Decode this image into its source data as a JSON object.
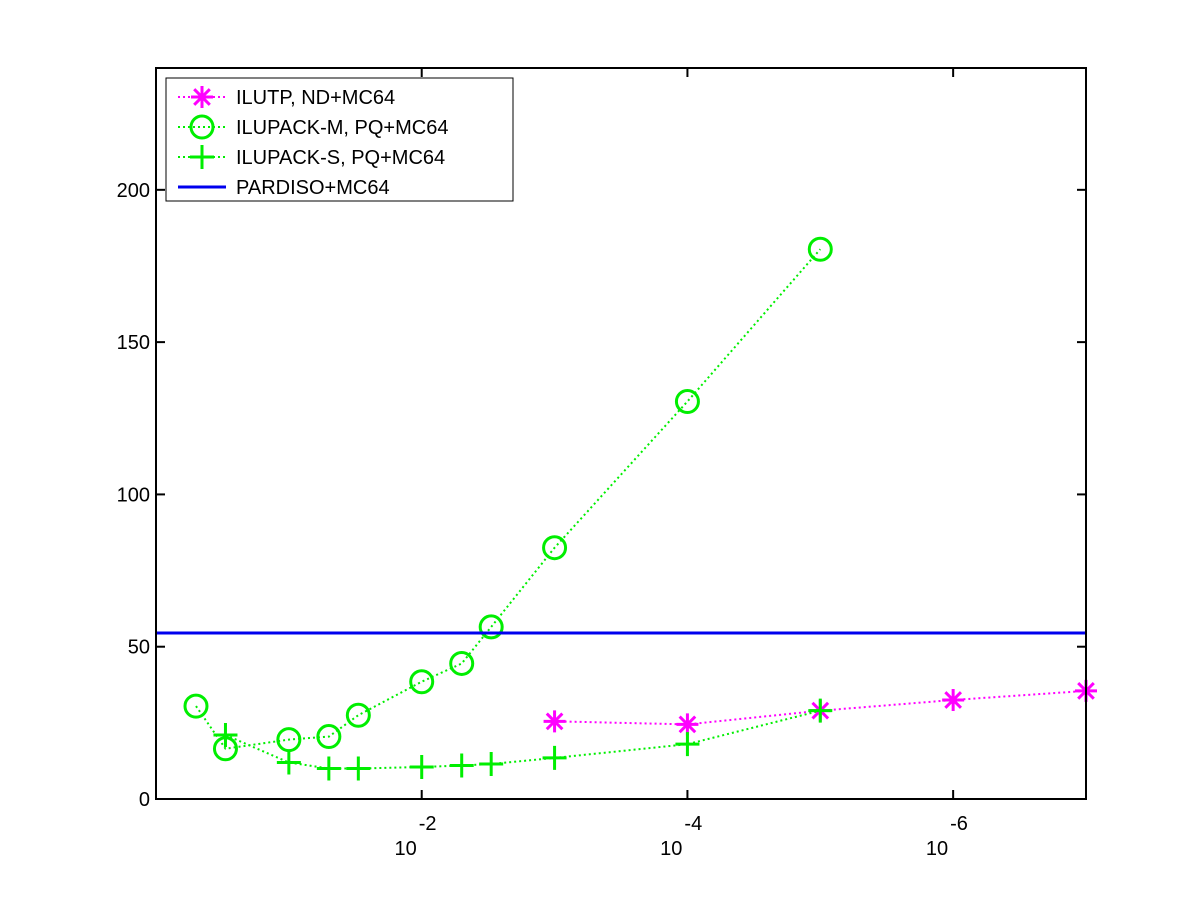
{
  "chart_data": {
    "type": "line",
    "title": "",
    "xlabel": "",
    "ylabel": "",
    "x_scale": "log",
    "x_reversed": true,
    "xlim": [
      1e-07,
      1
    ],
    "ylim": [
      0,
      240
    ],
    "x_ticks": [
      {
        "value": 0.01,
        "base": "10",
        "exponent": "-2"
      },
      {
        "value": 0.0001,
        "base": "10",
        "exponent": "-4"
      },
      {
        "value": 1e-06,
        "base": "10",
        "exponent": "-6"
      }
    ],
    "y_ticks": [
      {
        "value": 0,
        "label": "0"
      },
      {
        "value": 50,
        "label": "50"
      },
      {
        "value": 100,
        "label": "100"
      },
      {
        "value": 150,
        "label": "150"
      },
      {
        "value": 200,
        "label": "200"
      }
    ],
    "grid": false,
    "legend": "top-left",
    "series": [
      {
        "name": "ILUTP,  ND+MC64",
        "color": "#ff00ff",
        "marker": "asterisk",
        "line": "dotted",
        "x": [
          0.001,
          0.0001,
          1e-05,
          1e-06,
          1e-07
        ],
        "y": [
          25.5,
          24.5,
          29,
          32.5,
          35.5
        ]
      },
      {
        "name": "ILUPACK-M, PQ+MC64",
        "color": "#00ee00",
        "marker": "circle",
        "line": "dotted",
        "x": [
          0.5,
          0.3,
          0.1,
          0.05,
          0.03,
          0.01,
          0.005,
          0.003,
          0.001,
          0.0001,
          1e-05
        ],
        "y": [
          30.5,
          16.5,
          19.5,
          20.5,
          27.5,
          38.5,
          44.5,
          56.5,
          82.5,
          130.5,
          180.5
        ]
      },
      {
        "name": "ILUPACK-S, PQ+MC64",
        "color": "#00ee00",
        "marker": "plus",
        "line": "dotted",
        "x": [
          0.3,
          0.1,
          0.05,
          0.03,
          0.01,
          0.005,
          0.003,
          0.001,
          0.0001,
          1e-05
        ],
        "y": [
          21,
          12,
          10,
          10,
          10.5,
          11,
          11.5,
          13.5,
          18,
          29
        ]
      },
      {
        "name": "PARDISO+MC64",
        "color": "#0000ee",
        "marker": "none",
        "line": "solid",
        "x": [
          1,
          1e-07
        ],
        "y": [
          54.5,
          54.5
        ]
      }
    ]
  }
}
